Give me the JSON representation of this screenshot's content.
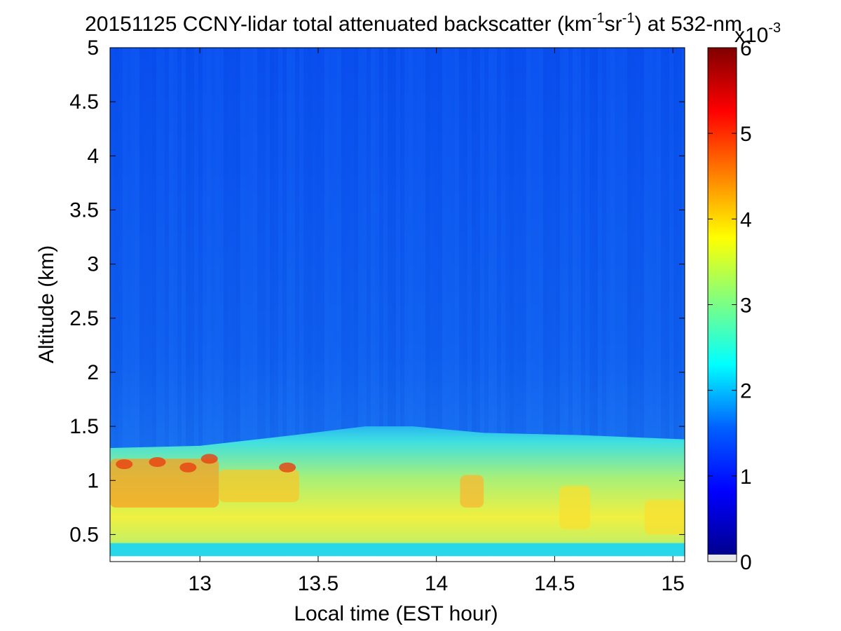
{
  "chart_data": {
    "type": "heatmap",
    "title_prefix": "20151125 CCNY-lidar total attenuated backscatter (km",
    "title_exp1": "-1",
    "title_mid": "sr",
    "title_exp2": "-1",
    "title_suffix": ") at 532-nm",
    "xlabel": "Local time (EST hour)",
    "ylabel": "Altitude (km)",
    "xlim": [
      12.62,
      15.05
    ],
    "ylim": [
      0.25,
      5
    ],
    "x_ticks": [
      13,
      13.5,
      14,
      14.5,
      15
    ],
    "x_tick_labels": [
      "13",
      "13.5",
      "14",
      "14.5",
      "15"
    ],
    "y_ticks": [
      0.5,
      1,
      1.5,
      2,
      2.5,
      3,
      3.5,
      4,
      4.5,
      5
    ],
    "y_tick_labels": [
      "0.5",
      "1",
      "1.5",
      "2",
      "2.5",
      "3",
      "3.5",
      "4",
      "4.5",
      "5"
    ],
    "data_bottom_altitude": 0.3,
    "boundary_layer_top": [
      {
        "t": 12.62,
        "alt": 1.3
      },
      {
        "t": 13.0,
        "alt": 1.32
      },
      {
        "t": 13.4,
        "alt": 1.42
      },
      {
        "t": 13.7,
        "alt": 1.5
      },
      {
        "t": 13.9,
        "alt": 1.5
      },
      {
        "t": 14.2,
        "alt": 1.44
      },
      {
        "t": 14.6,
        "alt": 1.42
      },
      {
        "t": 15.05,
        "alt": 1.38
      }
    ],
    "colorbar": {
      "range": [
        0,
        6
      ],
      "ticks": [
        0,
        1,
        2,
        3,
        4,
        5,
        6
      ],
      "tick_labels": [
        "0",
        "1",
        "2",
        "3",
        "4",
        "5",
        "6"
      ],
      "scale_base": "x10",
      "scale_exp": "-3",
      "colormap": "jet",
      "colors": [
        "#00008f",
        "#0000ff",
        "#0080ff",
        "#00ffff",
        "#80ff80",
        "#ffff00",
        "#ff8000",
        "#ff0000",
        "#800000"
      ]
    },
    "background_value": 1.05
  }
}
